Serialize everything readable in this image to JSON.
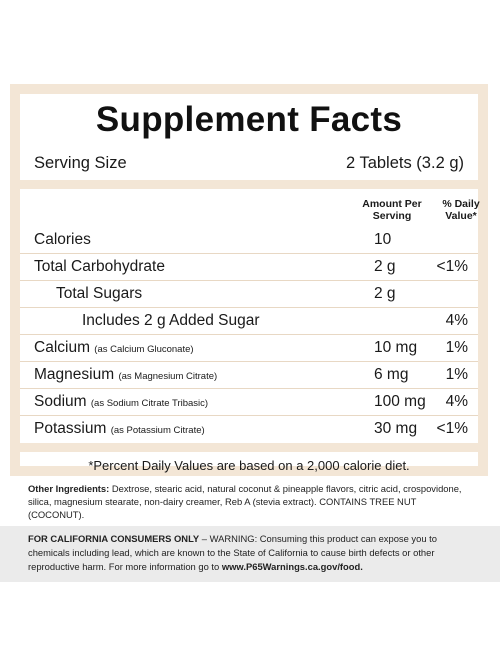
{
  "title": "Supplement Facts",
  "serving": {
    "label": "Serving Size",
    "value": "2 Tablets (3.2 g)"
  },
  "columns": {
    "amount": "Amount Per Serving",
    "dv": "% Daily Value*"
  },
  "rows": [
    {
      "name": "Calories",
      "sub": "",
      "amount": "10",
      "dv": "",
      "indent": 0
    },
    {
      "name": "Total Carbohydrate",
      "sub": "",
      "amount": "2 g",
      "dv": "<1%",
      "indent": 0
    },
    {
      "name": "Total Sugars",
      "sub": "",
      "amount": "2 g",
      "dv": "",
      "indent": 1
    },
    {
      "name": "Includes 2 g Added Sugar",
      "sub": "",
      "amount": "",
      "dv": "4%",
      "indent": 2
    },
    {
      "name": "Calcium",
      "sub": "(as Calcium Gluconate)",
      "amount": "10 mg",
      "dv": "1%",
      "indent": 0
    },
    {
      "name": "Magnesium",
      "sub": "(as Magnesium Citrate)",
      "amount": "6 mg",
      "dv": "1%",
      "indent": 0
    },
    {
      "name": "Sodium",
      "sub": "(as Sodium Citrate Tribasic)",
      "amount": "100 mg",
      "dv": "4%",
      "indent": 0
    },
    {
      "name": "Potassium",
      "sub": "(as Potassium Citrate)",
      "amount": "30 mg",
      "dv": "<1%",
      "indent": 0
    }
  ],
  "footnote": "*Percent Daily Values are based on a 2,000 calorie diet.",
  "ingredients": {
    "label": "Other Ingredients:",
    "text": "Dextrose, stearic acid, natural coconut & pineapple flavors, citric acid, crospovidone, silica, magnesium stearate, non-dairy creamer, Reb A (stevia extract). CONTAINS TREE NUT (COCONUT)."
  },
  "warning": {
    "label": "FOR CALIFORNIA CONSUMERS ONLY",
    "text": " – WARNING: Consuming this product can expose you to chemicals including lead, which are known to the State of California to cause birth defects or other reproductive harm. For more information go to ",
    "link": "www.P65Warnings.ca.gov/food."
  },
  "colors": {
    "border": "#f3e6d6",
    "rule": "#e8d8c4",
    "warning_bg": "#ebebeb"
  }
}
